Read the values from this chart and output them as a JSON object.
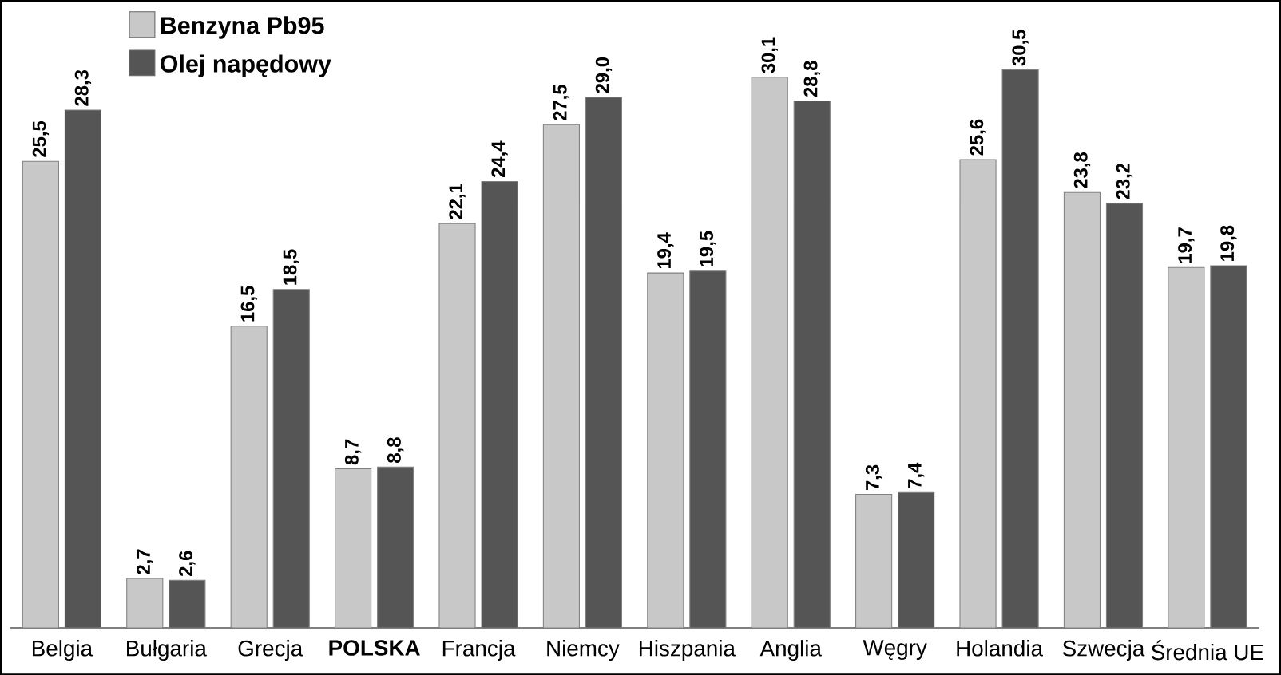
{
  "chart_data": {
    "type": "bar",
    "relative": false,
    "categories": [
      "Belgia",
      "Bułgaria",
      "Grecja",
      "**POLSKA**",
      "Francja",
      "Niemcy",
      "Hiszpania",
      "Anglia",
      "Węgry",
      "Holandia",
      "Szwecja",
      "Średnia UE"
    ],
    "series": [
      {
        "name": "Benzyna Pb95",
        "color": "#c8c8c8",
        "values": [
          25.5,
          2.7,
          16.5,
          8.7,
          22.1,
          27.5,
          19.4,
          30.1,
          7.3,
          25.6,
          23.8,
          19.7
        ],
        "value_labels": [
          "25,5",
          "2,7",
          "16,5",
          "8,7",
          "22,1",
          "27,5",
          "19,4",
          "30,1",
          "7,3",
          "25,6",
          "23,8",
          "19,7"
        ]
      },
      {
        "name": "Olej napędowy",
        "color": "#555555",
        "values": [
          28.3,
          2.6,
          18.5,
          8.8,
          24.4,
          29.0,
          19.5,
          28.8,
          7.4,
          30.5,
          23.2,
          19.8
        ],
        "value_labels": [
          "28,3",
          "2,6",
          "18,5",
          "8,8",
          "24,4",
          "29,0",
          "19,5",
          "28,8",
          "7,4",
          "30,5",
          "23,2",
          "19,8"
        ]
      }
    ],
    "legend": "top left"
  }
}
